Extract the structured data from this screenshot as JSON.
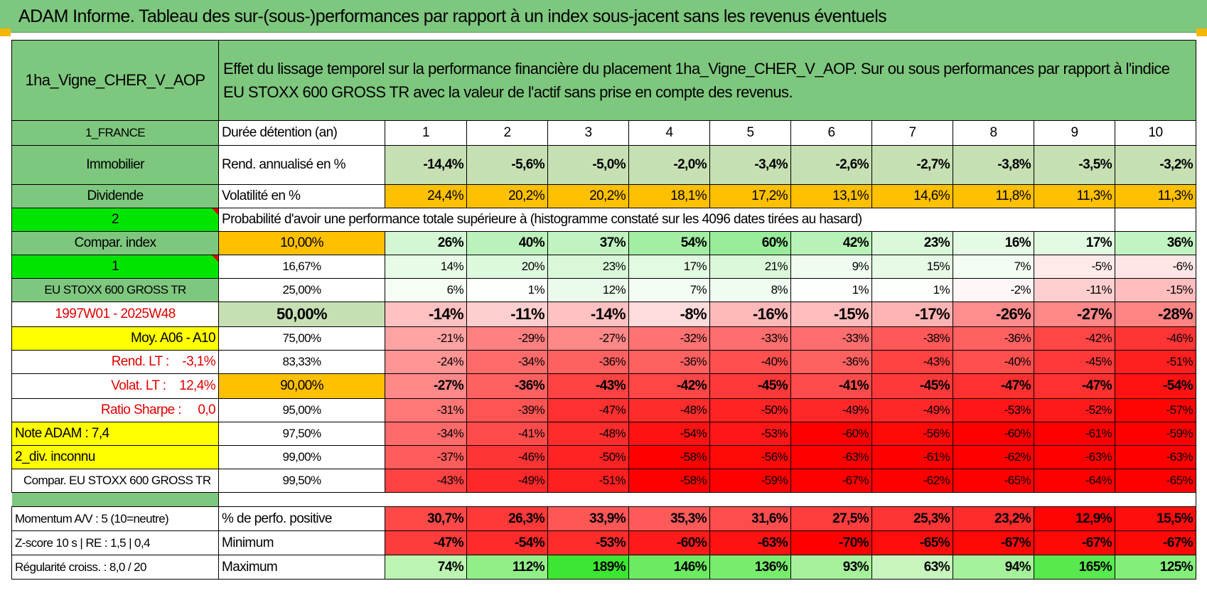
{
  "title": "ADAM Informe. Tableau des sur-(sous-)performances par rapport à un index sous-jacent sans les revenus éventuels",
  "asset_name": "1ha_Vigne_CHER_V_AOP",
  "header_text": "Effet du lissage temporel sur la performance financière du placement 1ha_Vigne_CHER_V_AOP. Sur ou sous performances par rapport à l'indice EU STOXX 600 GROSS TR avec la valeur de l'actif sans prise en compte des revenus.",
  "left": {
    "country": "1_FRANCE",
    "category": "Immobilier",
    "income_type": "Dividende",
    "index_selector": "2",
    "compar_index_label": "Compar. index",
    "index_code": "1",
    "index_name": "EU STOXX 600 GROSS TR",
    "period": "1997W01 - 2025W48",
    "moy_label": "Moy. A06 - A10",
    "rend_lt": "Rend. LT :    -3,1%",
    "volat_lt": "Volat. LT :    12,4%",
    "sharpe": "Ratio Sharpe :     0,0",
    "note_adam": "Note ADAM : 7,4",
    "div_info": "2_div. inconnu",
    "compar_index_full": "Compar. EU STOXX 600 GROSS TR",
    "momentum": "Momentum A/V : 5 (10=neutre)",
    "zscore": "Z-score 10 s | RE : 1,5 | 0,4",
    "regularite": "Régularité croiss. : 8,0 / 20"
  },
  "labels": {
    "duration": "Durée détention (an)",
    "rend": "Rend. annualisé en %",
    "volat": "Volatilité en %",
    "proba": "Probabilité d'avoir une performance totale supérieure à (histogramme constaté sur les 4096 dates tirées au hasard)",
    "pct_positive": "% de perfo. positive",
    "minimum": "Minimum",
    "maximum": "Maximum"
  },
  "years": [
    "1",
    "2",
    "3",
    "4",
    "5",
    "6",
    "7",
    "8",
    "9",
    "10"
  ],
  "rend_values": [
    "-14,4%",
    "-5,6%",
    "-5,0%",
    "-2,0%",
    "-3,4%",
    "-2,6%",
    "-2,7%",
    "-3,8%",
    "-3,5%",
    "-3,2%"
  ],
  "volat_values": [
    "24,4%",
    "20,2%",
    "20,2%",
    "18,1%",
    "17,2%",
    "13,1%",
    "14,6%",
    "11,8%",
    "11,3%",
    "11,3%"
  ],
  "prob_rows": [
    {
      "level": "10,00%",
      "values": [
        "26%",
        "40%",
        "37%",
        "54%",
        "60%",
        "42%",
        "23%",
        "16%",
        "17%",
        "36%"
      ]
    },
    {
      "level": "16,67%",
      "values": [
        "14%",
        "20%",
        "23%",
        "17%",
        "21%",
        "9%",
        "15%",
        "7%",
        "-5%",
        "-6%"
      ]
    },
    {
      "level": "25,00%",
      "values": [
        "6%",
        "1%",
        "12%",
        "7%",
        "8%",
        "1%",
        "1%",
        "-2%",
        "-11%",
        "-15%"
      ]
    },
    {
      "level": "50,00%",
      "values": [
        "-14%",
        "-11%",
        "-14%",
        "-8%",
        "-16%",
        "-15%",
        "-17%",
        "-26%",
        "-27%",
        "-28%"
      ]
    },
    {
      "level": "75,00%",
      "values": [
        "-21%",
        "-29%",
        "-27%",
        "-32%",
        "-33%",
        "-33%",
        "-38%",
        "-36%",
        "-42%",
        "-46%"
      ]
    },
    {
      "level": "83,33%",
      "values": [
        "-24%",
        "-34%",
        "-36%",
        "-36%",
        "-40%",
        "-36%",
        "-43%",
        "-40%",
        "-45%",
        "-51%"
      ]
    },
    {
      "level": "90,00%",
      "values": [
        "-27%",
        "-36%",
        "-43%",
        "-42%",
        "-45%",
        "-41%",
        "-45%",
        "-47%",
        "-47%",
        "-54%"
      ]
    },
    {
      "level": "95,00%",
      "values": [
        "-31%",
        "-39%",
        "-47%",
        "-48%",
        "-50%",
        "-49%",
        "-49%",
        "-53%",
        "-52%",
        "-57%"
      ]
    },
    {
      "level": "97,50%",
      "values": [
        "-34%",
        "-41%",
        "-48%",
        "-54%",
        "-53%",
        "-60%",
        "-56%",
        "-60%",
        "-61%",
        "-59%"
      ]
    },
    {
      "level": "99,00%",
      "values": [
        "-37%",
        "-46%",
        "-50%",
        "-58%",
        "-56%",
        "-63%",
        "-61%",
        "-62%",
        "-63%",
        "-63%"
      ]
    },
    {
      "level": "99,50%",
      "values": [
        "-43%",
        "-49%",
        "-51%",
        "-58%",
        "-59%",
        "-67%",
        "-62%",
        "-65%",
        "-64%",
        "-65%"
      ]
    }
  ],
  "pct_positive_values": [
    "30,7%",
    "26,3%",
    "33,9%",
    "35,3%",
    "31,6%",
    "27,5%",
    "25,3%",
    "23,2%",
    "12,9%",
    "15,5%"
  ],
  "minimum_values": [
    "-47%",
    "-54%",
    "-53%",
    "-60%",
    "-63%",
    "-70%",
    "-65%",
    "-67%",
    "-67%",
    "-67%"
  ],
  "maximum_values": [
    "74%",
    "112%",
    "189%",
    "146%",
    "136%",
    "93%",
    "63%",
    "94%",
    "165%",
    "125%"
  ]
}
